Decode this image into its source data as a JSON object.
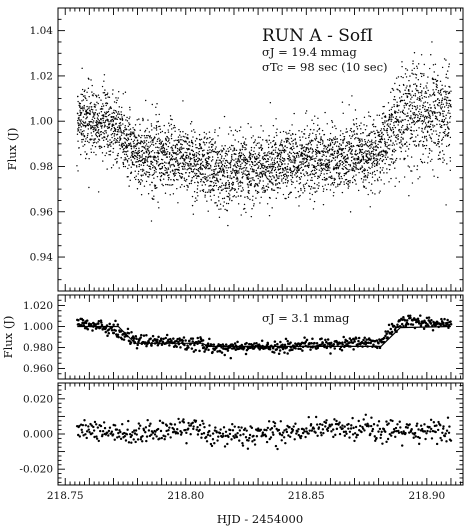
{
  "chart_data": [
    {
      "type": "scatter",
      "panel": "top",
      "title": "RUN A - SofI",
      "annotations": [
        "σJ = 19.4 mmag",
        "σTc = 98 sec (10 sec)"
      ],
      "xlabel": "",
      "ylabel": "Flux (J)",
      "xlim": [
        218.747,
        218.915
      ],
      "ylim": [
        0.925,
        1.05
      ],
      "xticks": [],
      "yticks": [
        {
          "value": 0.94,
          "label": "0.94"
        },
        {
          "value": 0.96,
          "label": "0.96"
        },
        {
          "value": 0.98,
          "label": "0.98"
        },
        {
          "value": 1.0,
          "label": "1.00"
        },
        {
          "value": 1.02,
          "label": "1.02"
        },
        {
          "value": 1.04,
          "label": "1.04"
        }
      ],
      "series": [
        {
          "values": [
            {
              "x": 218.755,
              "y": 1.001
            },
            {
              "x": 218.76,
              "y": 1.001
            },
            {
              "x": 218.765,
              "y": 1.0
            },
            {
              "x": 218.77,
              "y": 0.998
            },
            {
              "x": 218.775,
              "y": 0.992
            },
            {
              "x": 218.78,
              "y": 0.986
            },
            {
              "x": 218.785,
              "y": 0.985
            },
            {
              "x": 218.79,
              "y": 0.984
            },
            {
              "x": 218.795,
              "y": 0.984
            },
            {
              "x": 218.8,
              "y": 0.983
            },
            {
              "x": 218.805,
              "y": 0.982
            },
            {
              "x": 218.81,
              "y": 0.98
            },
            {
              "x": 218.815,
              "y": 0.978
            },
            {
              "x": 218.82,
              "y": 0.978
            },
            {
              "x": 218.825,
              "y": 0.979
            },
            {
              "x": 218.83,
              "y": 0.98
            },
            {
              "x": 218.835,
              "y": 0.98
            },
            {
              "x": 218.84,
              "y": 0.981
            },
            {
              "x": 218.845,
              "y": 0.982
            },
            {
              "x": 218.85,
              "y": 0.983
            },
            {
              "x": 218.855,
              "y": 0.983
            },
            {
              "x": 218.86,
              "y": 0.983
            },
            {
              "x": 218.865,
              "y": 0.984
            },
            {
              "x": 218.87,
              "y": 0.984
            },
            {
              "x": 218.875,
              "y": 0.984
            },
            {
              "x": 218.88,
              "y": 0.987
            },
            {
              "x": 218.885,
              "y": 0.995
            },
            {
              "x": 218.89,
              "y": 1.001
            },
            {
              "x": 218.895,
              "y": 1.003
            },
            {
              "x": 218.9,
              "y": 1.002
            },
            {
              "x": 218.905,
              "y": 1.001
            },
            {
              "x": 218.91,
              "y": 1.002
            }
          ],
          "scatter": 0.0075
        }
      ]
    },
    {
      "type": "scatter",
      "panel": "middle",
      "annotations": [
        "σJ = 3.1 mmag"
      ],
      "xlabel": "",
      "ylabel": "Flux (J)",
      "xlim": [
        218.747,
        218.915
      ],
      "ylim": [
        0.95,
        1.03
      ],
      "xticks": [],
      "yticks": [
        {
          "value": 0.96,
          "label": "0.960"
        },
        {
          "value": 0.98,
          "label": "0.980"
        },
        {
          "value": 1.0,
          "label": "1.000"
        },
        {
          "value": 1.02,
          "label": "1.020"
        }
      ],
      "series": [
        {
          "values": [
            {
              "x": 218.755,
              "y": 1.002
            },
            {
              "x": 218.76,
              "y": 1.001
            },
            {
              "x": 218.765,
              "y": 1.0
            },
            {
              "x": 218.77,
              "y": 0.998
            },
            {
              "x": 218.775,
              "y": 0.992
            },
            {
              "x": 218.78,
              "y": 0.986
            },
            {
              "x": 218.785,
              "y": 0.985
            },
            {
              "x": 218.79,
              "y": 0.985
            },
            {
              "x": 218.795,
              "y": 0.985
            },
            {
              "x": 218.8,
              "y": 0.985
            },
            {
              "x": 218.805,
              "y": 0.984
            },
            {
              "x": 218.81,
              "y": 0.98
            },
            {
              "x": 218.815,
              "y": 0.979
            },
            {
              "x": 218.82,
              "y": 0.98
            },
            {
              "x": 218.825,
              "y": 0.98
            },
            {
              "x": 218.83,
              "y": 0.98
            },
            {
              "x": 218.835,
              "y": 0.981
            },
            {
              "x": 218.84,
              "y": 0.981
            },
            {
              "x": 218.845,
              "y": 0.982
            },
            {
              "x": 218.85,
              "y": 0.983
            },
            {
              "x": 218.855,
              "y": 0.983
            },
            {
              "x": 218.86,
              "y": 0.984
            },
            {
              "x": 218.865,
              "y": 0.984
            },
            {
              "x": 218.87,
              "y": 0.985
            },
            {
              "x": 218.875,
              "y": 0.985
            },
            {
              "x": 218.88,
              "y": 0.985
            },
            {
              "x": 218.885,
              "y": 0.995
            },
            {
              "x": 218.89,
              "y": 1.004
            },
            {
              "x": 218.895,
              "y": 1.004
            },
            {
              "x": 218.9,
              "y": 1.003
            },
            {
              "x": 218.905,
              "y": 1.002
            },
            {
              "x": 218.91,
              "y": 1.002
            }
          ],
          "scatter": 0.003
        }
      ],
      "model_line": [
        {
          "x": 218.755,
          "y": 1.0
        },
        {
          "x": 218.772,
          "y": 1.0
        },
        {
          "x": 218.779,
          "y": 0.984
        },
        {
          "x": 218.807,
          "y": 0.984
        },
        {
          "x": 218.809,
          "y": 0.981
        },
        {
          "x": 218.881,
          "y": 0.981
        },
        {
          "x": 218.889,
          "y": 0.999
        },
        {
          "x": 218.91,
          "y": 1.0
        }
      ]
    },
    {
      "type": "scatter",
      "panel": "bottom",
      "xlabel": "HJD - 2454000",
      "ylabel": "",
      "xlim": [
        218.747,
        218.915
      ],
      "ylim": [
        -0.029,
        0.029
      ],
      "xticks": [
        {
          "value": 218.75,
          "label": "218.75"
        },
        {
          "value": 218.8,
          "label": "218.80"
        },
        {
          "value": 218.85,
          "label": "218.85"
        },
        {
          "value": 218.9,
          "label": "218.90"
        }
      ],
      "yticks": [
        {
          "value": -0.02,
          "label": "-0.020"
        },
        {
          "value": -0.01,
          "label": ""
        },
        {
          "value": 0.0,
          "label": "0.000"
        },
        {
          "value": 0.01,
          "label": ""
        },
        {
          "value": 0.02,
          "label": "0.020"
        }
      ],
      "series": [
        {
          "values": [
            {
              "x": 218.755,
              "y": 0.002
            },
            {
              "x": 218.765,
              "y": 0.001
            },
            {
              "x": 218.775,
              "y": -0.001
            },
            {
              "x": 218.785,
              "y": 0.001
            },
            {
              "x": 218.795,
              "y": 0.003
            },
            {
              "x": 218.805,
              "y": 0.004
            },
            {
              "x": 218.81,
              "y": -0.001
            },
            {
              "x": 218.82,
              "y": -0.001
            },
            {
              "x": 218.83,
              "y": 0.0
            },
            {
              "x": 218.84,
              "y": 0.001
            },
            {
              "x": 218.85,
              "y": 0.002
            },
            {
              "x": 218.86,
              "y": 0.003
            },
            {
              "x": 218.87,
              "y": 0.003
            },
            {
              "x": 218.88,
              "y": 0.001
            },
            {
              "x": 218.89,
              "y": 0.002
            },
            {
              "x": 218.9,
              "y": 0.002
            },
            {
              "x": 218.91,
              "y": 0.001
            }
          ],
          "scatter": 0.003
        }
      ]
    }
  ]
}
